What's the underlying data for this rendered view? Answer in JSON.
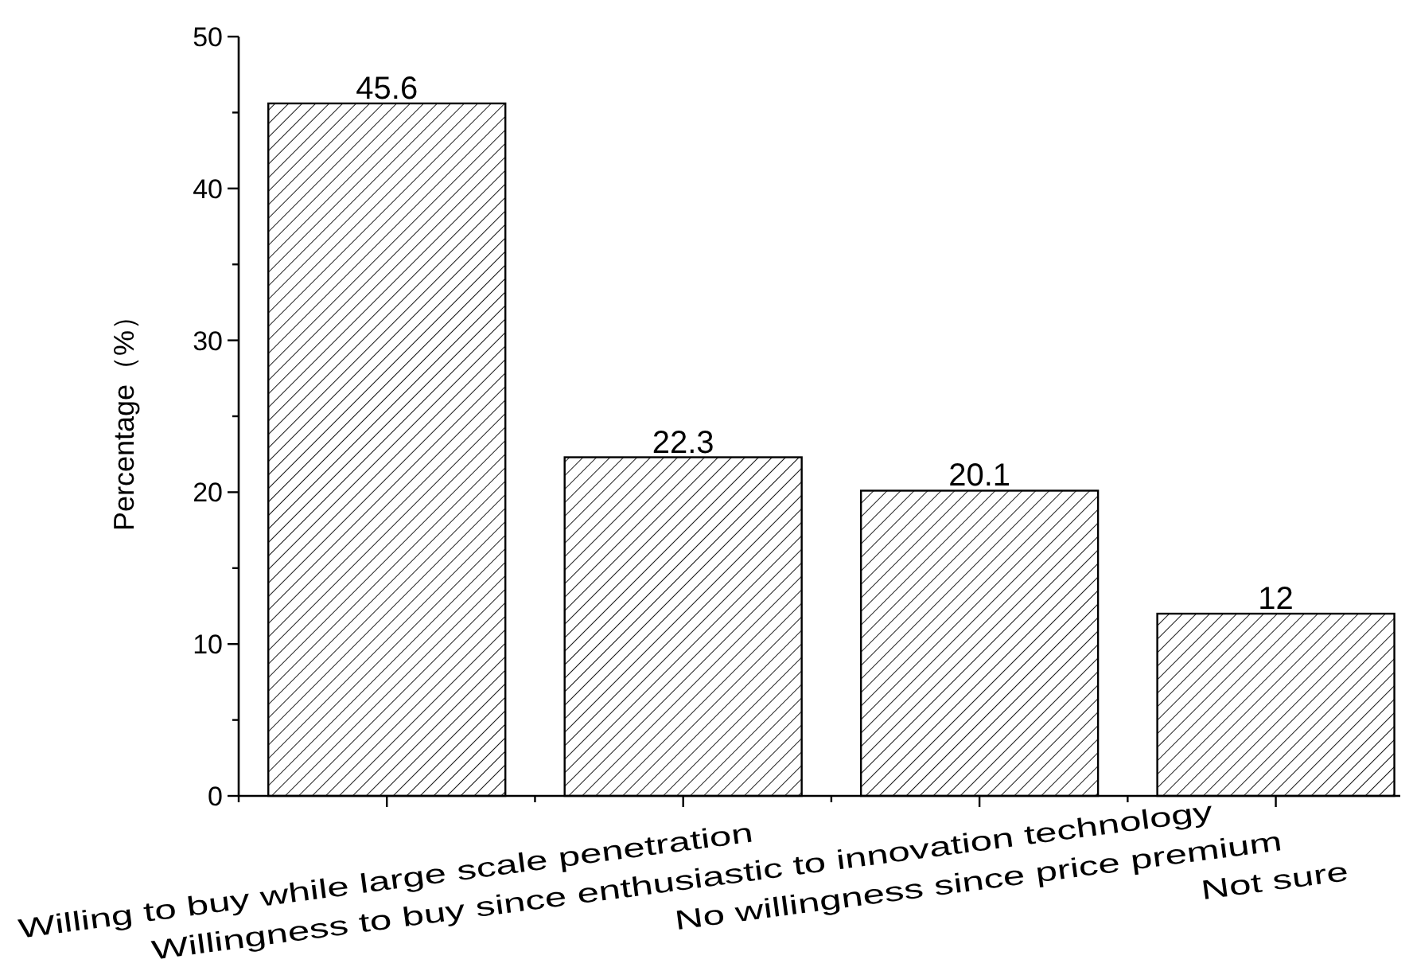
{
  "chart_data": {
    "type": "bar",
    "ylabel": "Percentage（%）",
    "categories": [
      "Willing to buy while large scale penetration",
      "Willingness to buy since enthusiastic to innovation technology",
      "No willingness since price premium",
      "Not sure"
    ],
    "values": [
      45.6,
      22.3,
      20.1,
      12
    ],
    "data_labels": true,
    "ylim": [
      0,
      50
    ],
    "yticks": [
      0,
      10,
      20,
      30,
      40,
      50
    ],
    "grid": false
  }
}
